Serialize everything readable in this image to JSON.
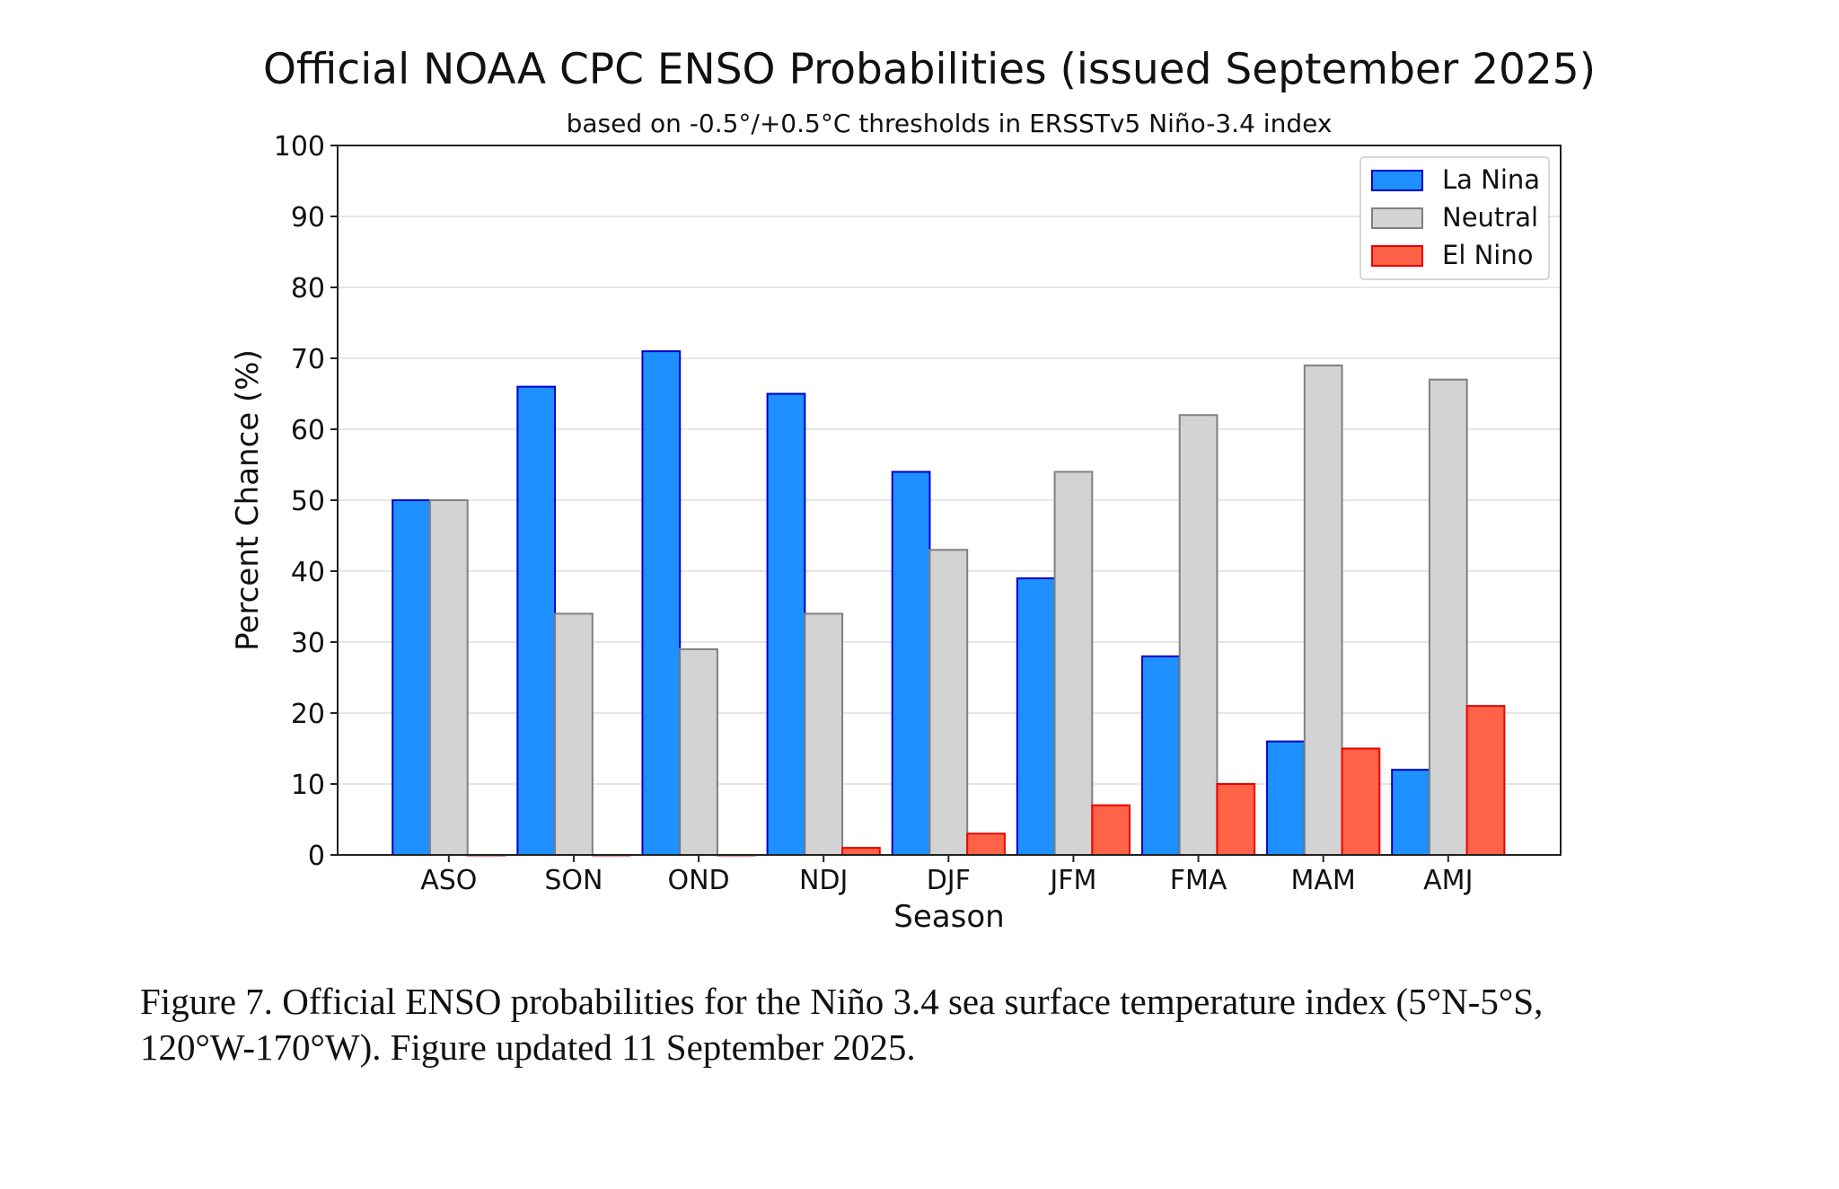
{
  "chart_data": {
    "type": "bar",
    "title": "Official NOAA CPC ENSO Probabilities (issued September 2025)",
    "subtitle": "based on -0.5°/+0.5°C thresholds in ERSSTv5 Niño-3.4 index",
    "xlabel": "Season",
    "ylabel": "Percent Chance (%)",
    "ylim": [
      0,
      100
    ],
    "yticks": [
      0,
      10,
      20,
      30,
      40,
      50,
      60,
      70,
      80,
      90,
      100
    ],
    "grid": true,
    "legend_position": "top-right",
    "categories": [
      "ASO",
      "SON",
      "OND",
      "NDJ",
      "DJF",
      "JFM",
      "FMA",
      "MAM",
      "AMJ"
    ],
    "series": [
      {
        "name": "La Nina",
        "color": "#1e90ff",
        "edge": "#0000cc",
        "values": [
          50,
          66,
          71,
          65,
          54,
          39,
          28,
          16,
          12
        ]
      },
      {
        "name": "Neutral",
        "color": "#d3d3d3",
        "edge": "#808080",
        "values": [
          50,
          34,
          29,
          34,
          43,
          54,
          62,
          69,
          67
        ]
      },
      {
        "name": "El Nino",
        "color": "#ff6347",
        "edge": "#ee0000",
        "values": [
          0,
          0,
          0,
          1,
          3,
          7,
          10,
          15,
          21
        ]
      }
    ]
  },
  "caption": {
    "line1": "Figure 7. Official ENSO probabilities for the Niño 3.4 sea surface temperature index (5°N-5°S,",
    "line2": "120°W-170°W). Figure updated 11 September 2025."
  }
}
